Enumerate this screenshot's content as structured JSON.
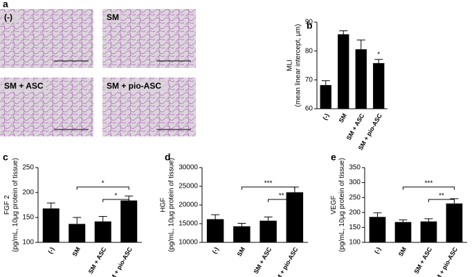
{
  "image_panel": {
    "label": "a",
    "images": [
      "(-)",
      "SM",
      "SM + ASC",
      "SM + pio-ASC"
    ]
  },
  "chart_data": [
    {
      "type": "bar",
      "label": "b",
      "ylabel": [
        "MLI",
        "(mean linear intercept, μm)"
      ],
      "categories": [
        "(-)",
        "SM",
        "SM + ASC",
        "SM + pio-ASC"
      ],
      "values": [
        68.2,
        85.8,
        80.6,
        75.8
      ],
      "errors": [
        1.5,
        1.2,
        3.2,
        1.3
      ],
      "color": "#000000",
      "ylim": [
        60,
        90
      ],
      "yticks": [
        60,
        70,
        80,
        90
      ],
      "annotations": [
        {
          "category": "SM + pio-ASC",
          "label": "*"
        }
      ],
      "comparisons": []
    },
    {
      "type": "bar",
      "label": "c",
      "ylabel": [
        "FGF 2",
        "(pg/mL, 10μg protein of tissue)"
      ],
      "categories": [
        "(-)",
        "SM",
        "SM + ASC",
        "SM + pio-ASC"
      ],
      "values": [
        168,
        137,
        142,
        184
      ],
      "errors": [
        11,
        13,
        10,
        9
      ],
      "color": "#000000",
      "ylim": [
        100,
        250
      ],
      "yticks": [
        100,
        150,
        200,
        250
      ],
      "annotations": [],
      "comparisons": [
        {
          "groups": [
            "SM",
            "SM + pio-ASC"
          ],
          "label": "*"
        },
        {
          "groups": [
            "SM + ASC",
            "SM + pio-ASC"
          ],
          "label": "*"
        }
      ]
    },
    {
      "type": "bar",
      "label": "d",
      "ylabel": [
        "HGF",
        "(pg/mL, 10μg protein of tissue)"
      ],
      "categories": [
        "(-)",
        "SM",
        "SM + ASC",
        "SM + pio-ASC"
      ],
      "values": [
        16200,
        14300,
        15800,
        23400
      ],
      "errors": [
        1200,
        800,
        1000,
        1400
      ],
      "color": "#000000",
      "ylim": [
        10000,
        30000
      ],
      "yticks": [
        10000,
        15000,
        20000,
        25000,
        30000
      ],
      "annotations": [],
      "comparisons": [
        {
          "groups": [
            "SM",
            "SM + pio-ASC"
          ],
          "label": "***"
        },
        {
          "groups": [
            "SM + ASC",
            "SM + pio-ASC"
          ],
          "label": "**"
        }
      ]
    },
    {
      "type": "bar",
      "label": "e",
      "ylabel": [
        "VEGF",
        "(pg/mL, 10μg protein of tissue)"
      ],
      "categories": [
        "(-)",
        "SM",
        "SM + ASC",
        "SM + pio-ASC"
      ],
      "values": [
        185,
        168,
        170,
        230
      ],
      "errors": [
        14,
        7,
        9,
        16
      ],
      "color": "#000000",
      "ylim": [
        100,
        350
      ],
      "yticks": [
        100,
        150,
        200,
        250,
        300,
        350
      ],
      "annotations": [],
      "comparisons": [
        {
          "groups": [
            "SM",
            "SM + pio-ASC"
          ],
          "label": "***"
        },
        {
          "groups": [
            "SM + ASC",
            "SM + pio-ASC"
          ],
          "label": "**"
        }
      ]
    }
  ]
}
